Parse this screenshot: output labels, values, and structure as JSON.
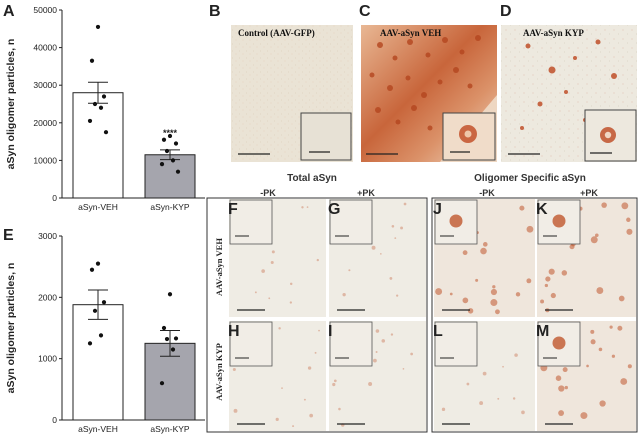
{
  "panel_letters": {
    "a": "A",
    "b": "B",
    "c": "C",
    "d": "D",
    "e": "E",
    "f": "F",
    "g": "G",
    "h": "H",
    "i": "I",
    "j": "J",
    "k": "K",
    "l": "L",
    "m": "M"
  },
  "micrograph_titles": {
    "b": "Control (AAV-GFP)",
    "c": "AAV-aSyn VEH",
    "d": "AAV-aSyn KYP"
  },
  "group_headers": {
    "total": "Total aSyn",
    "oligomer": "Oligomer Specific aSyn"
  },
  "treatments": {
    "minus_pk": "-PK",
    "plus_pk": "+PK"
  },
  "row_labels": {
    "veh": "AAV-aSyn VEH",
    "kyp": "AAV-aSyn KYP"
  },
  "colors": {
    "veh_bar": "#ffffff",
    "kyp_bar": "#a5a5ad",
    "stain": "#c0562d",
    "tissue": "#ece4d6"
  },
  "chart_data": [
    {
      "type": "bar",
      "panel": "A",
      "ylabel": "aSyn oligomer particles, n",
      "ylim": [
        0,
        50000
      ],
      "yticks": [
        "0",
        "10000",
        "20000",
        "30000",
        "40000",
        "50000"
      ],
      "categories": [
        "aSyn-VEH",
        "aSyn-KYP"
      ],
      "values": [
        28000,
        11500
      ],
      "sem": [
        2800,
        1300
      ],
      "points": [
        [
          45500,
          36500,
          27000,
          25000,
          24000,
          20500,
          17500
        ],
        [
          16500,
          15500,
          14500,
          12500,
          10000,
          9000,
          7000
        ]
      ],
      "significance": "****"
    },
    {
      "type": "bar",
      "panel": "E",
      "ylabel": "aSyn oligomer particles, n",
      "ylim": [
        0,
        3000
      ],
      "yticks": [
        "0",
        "1000",
        "2000",
        "3000"
      ],
      "categories": [
        "aSyn-VEH",
        "aSyn-KYP"
      ],
      "values": [
        1880,
        1250
      ],
      "sem": [
        240,
        210
      ],
      "points": [
        [
          2550,
          2450,
          1920,
          1780,
          1380,
          1250
        ],
        [
          2050,
          1500,
          1330,
          1320,
          1150,
          600
        ]
      ]
    }
  ]
}
